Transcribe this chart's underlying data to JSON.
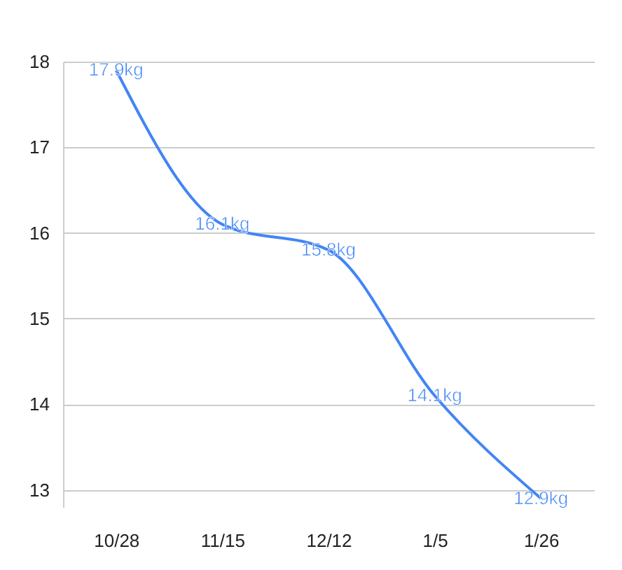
{
  "chart_data": {
    "type": "line",
    "categories": [
      "10/28",
      "11/15",
      "12/12",
      "1/5",
      "1/26"
    ],
    "series": [
      {
        "color": "#4285f4",
        "values": [
          17.9,
          16.1,
          15.8,
          14.1,
          12.9
        ],
        "value_labels": [
          "17.9kg",
          "16.1kg",
          "15.8kg",
          "14.1kg",
          "12.9kg"
        ]
      }
    ],
    "ylim": [
      12.8,
      18
    ],
    "yticks": [
      13,
      14,
      15,
      16,
      17,
      18
    ],
    "grid": "y",
    "marker": "none",
    "line_style": "solid"
  }
}
